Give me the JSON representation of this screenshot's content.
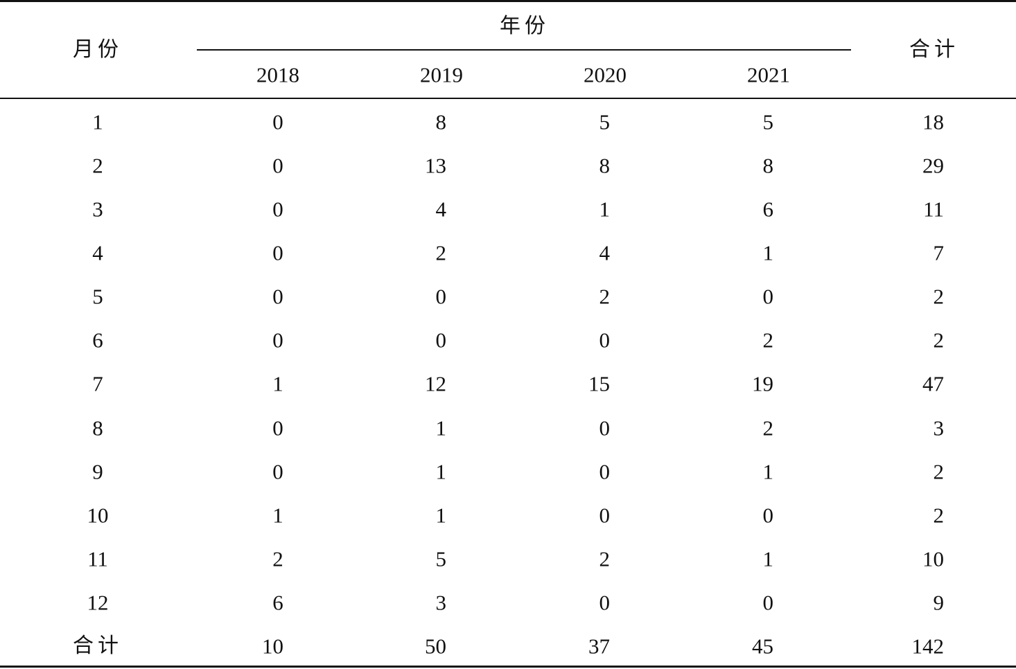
{
  "table": {
    "header": {
      "month_label": "月份",
      "year_group_label": "年份",
      "total_label": "合计",
      "years": [
        "2018",
        "2019",
        "2020",
        "2021"
      ]
    },
    "rows": [
      {
        "month": "1",
        "values": [
          "0",
          "8",
          "5",
          "5"
        ],
        "total": "18"
      },
      {
        "month": "2",
        "values": [
          "0",
          "13",
          "8",
          "8"
        ],
        "total": "29"
      },
      {
        "month": "3",
        "values": [
          "0",
          "4",
          "1",
          "6"
        ],
        "total": "11"
      },
      {
        "month": "4",
        "values": [
          "0",
          "2",
          "4",
          "1"
        ],
        "total": "7"
      },
      {
        "month": "5",
        "values": [
          "0",
          "0",
          "2",
          "0"
        ],
        "total": "2"
      },
      {
        "month": "6",
        "values": [
          "0",
          "0",
          "0",
          "2"
        ],
        "total": "2"
      },
      {
        "month": "7",
        "values": [
          "1",
          "12",
          "15",
          "19"
        ],
        "total": "47"
      },
      {
        "month": "8",
        "values": [
          "0",
          "1",
          "0",
          "2"
        ],
        "total": "3"
      },
      {
        "month": "9",
        "values": [
          "0",
          "1",
          "0",
          "1"
        ],
        "total": "2"
      },
      {
        "month": "10",
        "values": [
          "1",
          "1",
          "0",
          "0"
        ],
        "total": "2"
      },
      {
        "month": "11",
        "values": [
          "2",
          "5",
          "2",
          "1"
        ],
        "total": "10"
      },
      {
        "month": "12",
        "values": [
          "6",
          "3",
          "0",
          "0"
        ],
        "total": "9"
      }
    ],
    "totals_row": {
      "label": "合计",
      "values": [
        "10",
        "50",
        "37",
        "45"
      ],
      "total": "142"
    }
  }
}
